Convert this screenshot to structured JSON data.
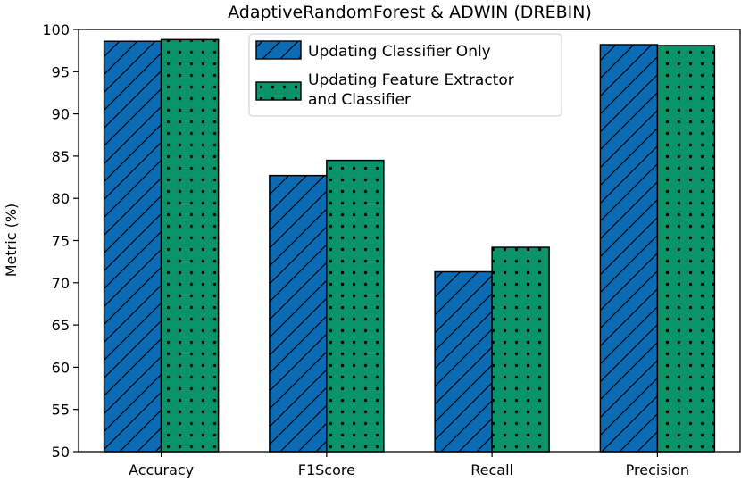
{
  "chart_data": {
    "type": "bar",
    "title": "AdaptiveRandomForest & ADWIN (DREBIN)",
    "xlabel": "",
    "ylabel": "Metric (%)",
    "ylim": [
      50,
      100
    ],
    "yticks": [
      50,
      55,
      60,
      65,
      70,
      75,
      80,
      85,
      90,
      95,
      100
    ],
    "categories": [
      "Accuracy",
      "F1Score",
      "Recall",
      "Precision"
    ],
    "legend_position": "top-center",
    "grid": false,
    "series": [
      {
        "name": "Updating Classifier Only",
        "color": "#0c6bb5",
        "hatch": "diagonal",
        "values": [
          98.6,
          82.7,
          71.3,
          98.2
        ]
      },
      {
        "name_lines": [
          "Updating Feature Extractor",
          "and Classifier"
        ],
        "color": "#0a9468",
        "hatch": "dots",
        "values": [
          98.8,
          84.5,
          74.2,
          98.1
        ]
      }
    ]
  }
}
